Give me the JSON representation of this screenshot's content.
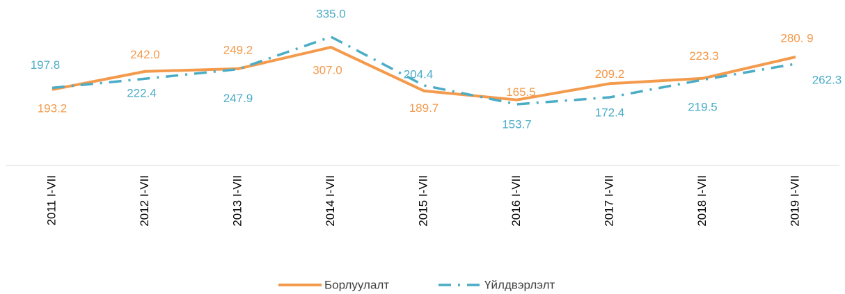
{
  "chart_data": {
    "type": "line",
    "categories": [
      "2011 I-VII",
      "2012 I-VII",
      "2013 I-VII",
      "2014 I-VII",
      "2015 I-VII",
      "2016 I-VII",
      "2017 I-VII",
      "2018 I-VII",
      "2019 I-VII"
    ],
    "series": [
      {
        "name": "Борлуулалт",
        "color": "#f39a4c",
        "dash": "solid",
        "values": [
          193.2,
          242.0,
          249.2,
          307.0,
          189.7,
          165.5,
          209.2,
          223.3,
          280.9
        ],
        "value_labels": [
          "193.2",
          "242.0",
          "249.2",
          "307.0",
          "189.7",
          "165.5",
          "209.2",
          "223.3",
          "280. 9"
        ]
      },
      {
        "name": "Үйлдвэрлэлт",
        "color": "#4bacc6",
        "dash": "dash-dot",
        "values": [
          197.8,
          222.4,
          247.9,
          335.0,
          204.4,
          153.7,
          172.4,
          219.5,
          262.3
        ],
        "value_labels": [
          "197.8",
          "222.4",
          "247.9",
          "335.0",
          "204.4",
          "153.7",
          "172.4",
          "219.5",
          "262.3"
        ]
      }
    ],
    "legend": "bottom"
  }
}
